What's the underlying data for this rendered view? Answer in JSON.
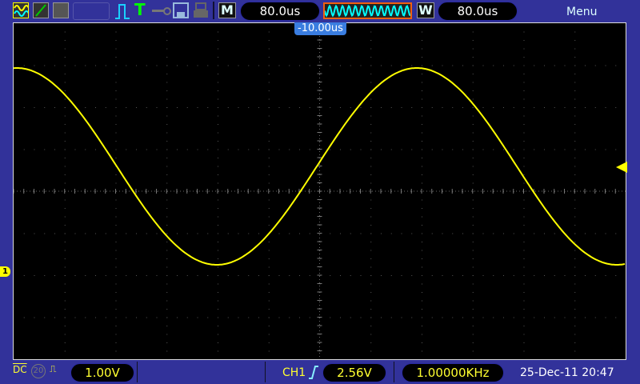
{
  "toolbar": {
    "icons": [
      "dual-wave-icon",
      "ramp-icon",
      "persistence-icon",
      "blank-slot",
      "pulse-icon",
      "trigger-t-icon",
      "key-icon",
      "save-icon",
      "print-icon"
    ],
    "m_label": "M",
    "m_timebase": "80.0us",
    "w_label": "W",
    "w_timebase": "80.0us",
    "menu_label": "Menu"
  },
  "screen": {
    "trigger_position": "-10.00us",
    "channel_marker": "1",
    "trace_color": "#ffff00"
  },
  "waveform": {
    "shape": "sine",
    "frequency": "1.00000KHz",
    "divisions_x": 12,
    "divisions_y": 8
  },
  "status": {
    "coupling": "DC",
    "bw_limit": "20",
    "ch1_scale": "1.00V",
    "trigger_source": "CH1",
    "trigger_edge": "rising",
    "trigger_level": "2.56V",
    "frequency": "1.00000KHz",
    "datetime": "25-Dec-11 20:47"
  }
}
